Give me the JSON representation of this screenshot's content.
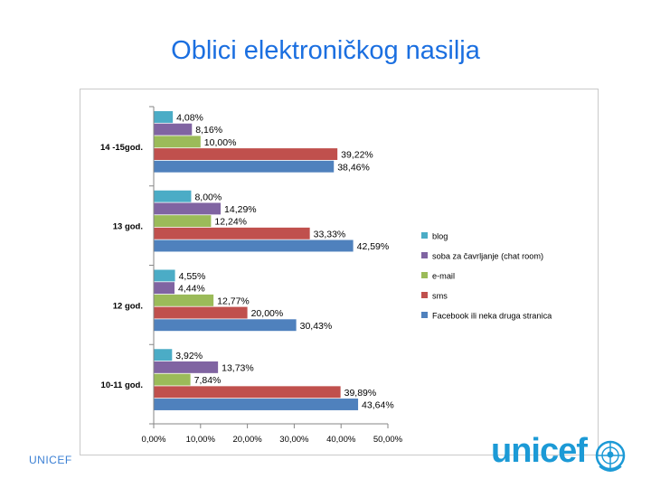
{
  "slide": {
    "title": "Oblici elektroničkog nasilja",
    "footer": "UNICEF",
    "logo_text": "unicef"
  },
  "colors": {
    "title": "#1b6fe0",
    "blog": "#4bacc6",
    "soba": "#8064a2",
    "email": "#9bbb59",
    "sms": "#c0504d",
    "facebook": "#4f81bd",
    "logo": "#1c9ad6"
  },
  "icons": {
    "logo": "unicef-globe-icon"
  },
  "chart_data": {
    "type": "bar",
    "orientation": "horizontal",
    "categories": [
      "14 -15god.",
      "13 god.",
      "12 god.",
      "10-11 god."
    ],
    "series": [
      {
        "name": "blog",
        "color": "#4bacc6",
        "values": [
          4.08,
          8.0,
          4.55,
          3.92
        ],
        "labels": [
          "4,08%",
          "8,00%",
          "4,55%",
          "3,92%"
        ]
      },
      {
        "name": "soba za čavrljanje  (chat  room)",
        "color": "#8064a2",
        "values": [
          8.16,
          14.29,
          4.44,
          13.73
        ],
        "labels": [
          "8,16%",
          "14,29%",
          "4,44%",
          "13,73%"
        ]
      },
      {
        "name": "e-mail",
        "color": "#9bbb59",
        "values": [
          10.0,
          12.24,
          12.77,
          7.84
        ],
        "labels": [
          "10,00%",
          "12,24%",
          "12,77%",
          "7,84%"
        ]
      },
      {
        "name": "sms",
        "color": "#c0504d",
        "values": [
          39.22,
          33.33,
          20.0,
          39.89
        ],
        "labels": [
          "39,22%",
          "33,33%",
          "20,00%",
          "39,89%"
        ]
      },
      {
        "name": "Facebook ili neka druga stranica",
        "color": "#4f81bd",
        "values": [
          38.46,
          42.59,
          30.43,
          43.64
        ],
        "labels": [
          "38,46%",
          "42,59%",
          "30,43%",
          "43,64%"
        ]
      }
    ],
    "xlim": [
      0,
      50
    ],
    "xticks": [
      "0,00%",
      "10,00%",
      "20,00%",
      "30,00%",
      "40,00%",
      "50,00%"
    ],
    "grid": false,
    "legend_position": "right"
  }
}
